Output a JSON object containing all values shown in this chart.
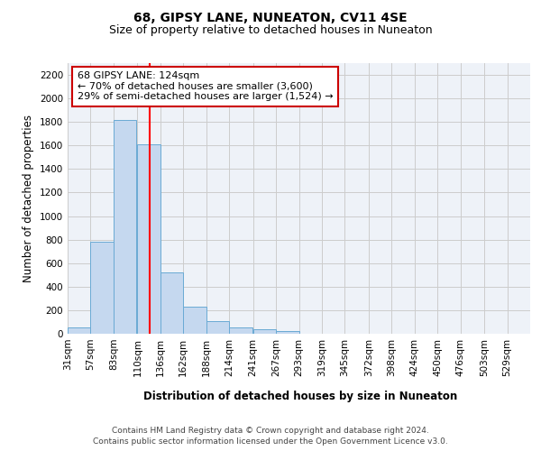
{
  "title1": "68, GIPSY LANE, NUNEATON, CV11 4SE",
  "title2": "Size of property relative to detached houses in Nuneaton",
  "xlabel": "Distribution of detached houses by size in Nuneaton",
  "ylabel": "Number of detached properties",
  "bin_edges": [
    31,
    57,
    83,
    110,
    136,
    162,
    188,
    214,
    241,
    267,
    293,
    319,
    345,
    372,
    398,
    424,
    450,
    476,
    503,
    529,
    555
  ],
  "bin_counts": [
    50,
    780,
    1820,
    1610,
    520,
    230,
    105,
    55,
    35,
    20,
    0,
    0,
    0,
    0,
    0,
    0,
    0,
    0,
    0,
    0
  ],
  "bar_facecolor": "#c5d8ef",
  "bar_edgecolor": "#6aaad4",
  "red_line_x": 124,
  "annotation_line1": "68 GIPSY LANE: 124sqm",
  "annotation_line2": "← 70% of detached houses are smaller (3,600)",
  "annotation_line3": "29% of semi-detached houses are larger (1,524) →",
  "annotation_box_edgecolor": "#cc0000",
  "annotation_box_facecolor": "white",
  "ylim": [
    0,
    2300
  ],
  "yticks": [
    0,
    200,
    400,
    600,
    800,
    1000,
    1200,
    1400,
    1600,
    1800,
    2000,
    2200
  ],
  "grid_color": "#cccccc",
  "background_color": "#eef2f8",
  "footer_line1": "Contains HM Land Registry data © Crown copyright and database right 2024.",
  "footer_line2": "Contains public sector information licensed under the Open Government Licence v3.0.",
  "title1_fontsize": 10,
  "title2_fontsize": 9,
  "xlabel_fontsize": 8.5,
  "ylabel_fontsize": 8.5,
  "tick_fontsize": 7.5,
  "annotation_fontsize": 8,
  "footer_fontsize": 6.5
}
